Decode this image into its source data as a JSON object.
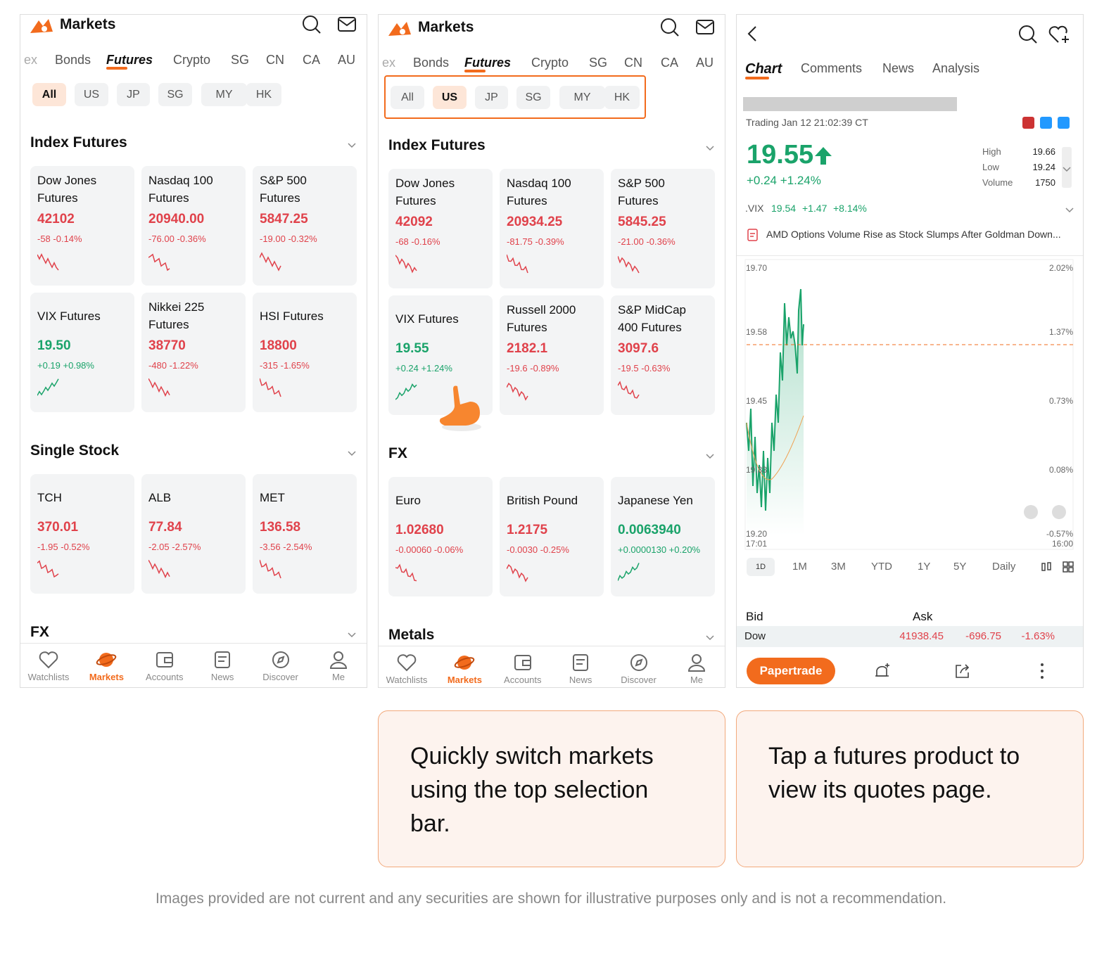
{
  "screens": [
    {
      "title": "Markets",
      "tabs": [
        "ex",
        "Bonds",
        "Futures",
        "Crypto",
        "SG",
        "CN",
        "CA",
        "AU"
      ],
      "regions": [
        "All",
        "US",
        "JP",
        "SG",
        "MY",
        "HK"
      ],
      "sections": [
        {
          "title": "Index Futures",
          "cards": [
            {
              "name": "Dow Jones Futures",
              "price": "42102",
              "change": "-58 -0.14%"
            },
            {
              "name": "Nasdaq 100 Futures",
              "price": "20940.00",
              "change": "-76.00 -0.36%"
            },
            {
              "name": "S&P 500 Futures",
              "price": "5847.25",
              "change": "-19.00 -0.32%"
            },
            {
              "name": "VIX Futures",
              "price": "19.50",
              "change": "+0.19 +0.98%"
            },
            {
              "name": "Nikkei 225 Futures",
              "price": "38770",
              "change": "-480 -1.22%"
            },
            {
              "name": "HSI Futures",
              "price": "18800",
              "change": "-315 -1.65%"
            }
          ]
        },
        {
          "title": "Single Stock",
          "cards": [
            {
              "name": "TCH",
              "price": "370.01",
              "change": "-1.95 -0.52%"
            },
            {
              "name": "ALB",
              "price": "77.84",
              "change": "-2.05 -2.57%"
            },
            {
              "name": "MET",
              "price": "136.58",
              "change": "-3.56 -2.54%"
            }
          ]
        },
        {
          "title": "FX",
          "cards": []
        }
      ],
      "nav": [
        "Watchlists",
        "Markets",
        "Accounts",
        "News",
        "Discover",
        "Me"
      ]
    },
    {
      "title": "Markets",
      "tabs": [
        "ex",
        "Bonds",
        "Futures",
        "Crypto",
        "SG",
        "CN",
        "CA",
        "AU"
      ],
      "regions": [
        "All",
        "US",
        "JP",
        "SG",
        "MY",
        "HK"
      ],
      "sections": [
        {
          "title": "Index Futures",
          "cards": [
            {
              "name": "Dow Jones Futures",
              "price": "42092",
              "change": "-68 -0.16%"
            },
            {
              "name": "Nasdaq 100 Futures",
              "price": "20934.25",
              "change": "-81.75 -0.39%"
            },
            {
              "name": "S&P 500 Futures",
              "price": "5845.25",
              "change": "-21.00 -0.36%"
            },
            {
              "name": "VIX Futures",
              "price": "19.55",
              "change": "+0.24 +1.24%"
            },
            {
              "name": "Russell 2000 Futures",
              "price": "2182.1",
              "change": "-19.6 -0.89%"
            },
            {
              "name": "S&P MidCap 400 Futures",
              "price": "3097.6",
              "change": "-19.5 -0.63%"
            }
          ]
        },
        {
          "title": "FX",
          "cards": [
            {
              "name": "Euro",
              "price": "1.02680",
              "change": "-0.00060 -0.06%"
            },
            {
              "name": "British Pound",
              "price": "1.2175",
              "change": "-0.0030 -0.25%"
            },
            {
              "name": "Japanese Yen",
              "price": "0.0063940",
              "change": "+0.0000130 +0.20%"
            }
          ]
        },
        {
          "title": "Metals",
          "cards": []
        }
      ],
      "nav": [
        "Watchlists",
        "Markets",
        "Accounts",
        "News",
        "Discover",
        "Me"
      ]
    }
  ],
  "quote": {
    "tabs": [
      "Chart",
      "Comments",
      "News",
      "Analysis"
    ],
    "trading": "Trading Jan 12 21:02:39 CT",
    "price": "19.55",
    "change": "+0.24 +1.24%",
    "stats": [
      {
        "label": "High",
        "value": "19.66"
      },
      {
        "label": "Low",
        "value": "19.24"
      },
      {
        "label": "Volume",
        "value": "1750"
      }
    ],
    "related": {
      "symbol": ".VIX",
      "price": "19.54",
      "change": "+1.47",
      "percent": "+8.14%"
    },
    "news": "AMD  Options Volume Rise as Stock Slumps After Goldman Down...",
    "axis_left": [
      "19.70",
      "19.58",
      "19.45",
      "19.33",
      "19.20"
    ],
    "axis_right": [
      "2.02%",
      "1.37%",
      "0.73%",
      "0.08%",
      "-0.57%"
    ],
    "time_start": "17:01",
    "time_end": "16:00",
    "period_icon": "1D",
    "periods": [
      "1M",
      "3M",
      "YTD",
      "1Y",
      "5Y",
      "Daily"
    ],
    "bid": "Bid",
    "ask": "Ask",
    "row": {
      "name": "Dow",
      "price": "41938.45",
      "change": "-696.75",
      "percent": "-1.63%"
    },
    "button": "Papertrade"
  },
  "captions": [
    "Quickly switch markets using the top selection bar.",
    "Tap a futures product to view its quotes page."
  ],
  "disclaimer": "Images provided are not current and any securities are shown for illustrative purposes only and is not a recommendation."
}
